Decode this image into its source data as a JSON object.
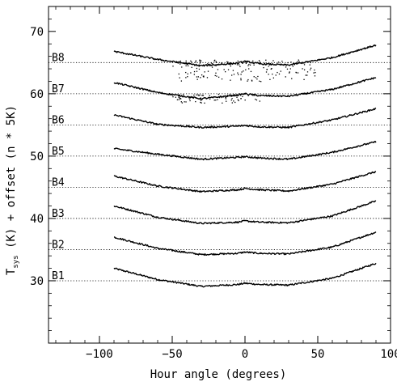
{
  "chart_data": {
    "type": "scatter",
    "title": "",
    "xlabel": "Hour angle (degrees)",
    "ylabel": {
      "symbol": "T",
      "subscript": "sys",
      "rest": " (K) + offset (n * 5K)"
    },
    "xlim": [
      -135,
      100
    ],
    "ylim": [
      20,
      74
    ],
    "xticks": [
      -100,
      -50,
      0,
      50,
      100
    ],
    "xtick_labels": [
      "−100",
      "−50",
      "0",
      "50",
      "100"
    ],
    "yticks": [
      30,
      40,
      50,
      60,
      70
    ],
    "ytick_labels": [
      "30",
      "40",
      "50",
      "60",
      "70"
    ],
    "x_range_of_data": [
      -90,
      90
    ],
    "reference_line_style": "dotted",
    "series": [
      {
        "name": "B1",
        "baseline": 30,
        "y_at": {
          "x": [
            -90,
            -60,
            -30,
            -5,
            0,
            10,
            30,
            60,
            90
          ],
          "y": [
            32.0,
            30.2,
            29.1,
            29.4,
            29.6,
            29.4,
            29.3,
            30.4,
            32.8
          ]
        }
      },
      {
        "name": "B2",
        "baseline": 35,
        "y_at": {
          "x": [
            -90,
            -60,
            -30,
            -5,
            0,
            10,
            30,
            60,
            90
          ],
          "y": [
            37.0,
            35.2,
            34.2,
            34.4,
            34.6,
            34.4,
            34.3,
            35.4,
            37.8
          ]
        }
      },
      {
        "name": "B3",
        "baseline": 40,
        "y_at": {
          "x": [
            -90,
            -60,
            -30,
            -5,
            0,
            10,
            30,
            60,
            90
          ],
          "y": [
            42.0,
            40.2,
            39.2,
            39.4,
            39.6,
            39.4,
            39.3,
            40.4,
            42.8
          ]
        }
      },
      {
        "name": "B4",
        "baseline": 45,
        "y_at": {
          "x": [
            -90,
            -60,
            -30,
            -5,
            0,
            10,
            30,
            60,
            90
          ],
          "y": [
            46.8,
            45.2,
            44.3,
            44.6,
            44.8,
            44.6,
            44.4,
            45.5,
            47.5
          ]
        }
      },
      {
        "name": "B5",
        "baseline": 50,
        "y_at": {
          "x": [
            -90,
            -60,
            -30,
            -5,
            0,
            10,
            30,
            60,
            90
          ],
          "y": [
            51.2,
            50.3,
            49.5,
            49.8,
            49.9,
            49.7,
            49.5,
            50.6,
            52.3
          ]
        }
      },
      {
        "name": "B6",
        "baseline": 55,
        "y_at": {
          "x": [
            -90,
            -60,
            -30,
            -5,
            0,
            10,
            30,
            60,
            90
          ],
          "y": [
            56.6,
            55.1,
            54.6,
            54.8,
            54.9,
            54.7,
            54.6,
            55.8,
            57.6
          ]
        }
      },
      {
        "name": "B7",
        "baseline": 60,
        "y_at": {
          "x": [
            -90,
            -60,
            -30,
            -5,
            0,
            10,
            30,
            60,
            90
          ],
          "y": [
            61.8,
            60.2,
            59.2,
            59.8,
            60.0,
            59.7,
            59.6,
            60.7,
            62.6
          ]
        }
      },
      {
        "name": "B8",
        "baseline": 65,
        "y_at": {
          "x": [
            -90,
            -60,
            -30,
            -5,
            0,
            10,
            30,
            60,
            90
          ],
          "y": [
            66.8,
            65.5,
            64.5,
            64.9,
            65.2,
            64.8,
            64.6,
            65.8,
            67.8
          ]
        }
      }
    ],
    "scatter_regions": [
      {
        "series": "B8",
        "x": [
          -50,
          50
        ],
        "y": [
          62,
          65.5
        ]
      },
      {
        "series": "B7",
        "x": [
          -50,
          10
        ],
        "y": [
          58.5,
          60
        ]
      }
    ],
    "grid": false,
    "legend": "none"
  }
}
